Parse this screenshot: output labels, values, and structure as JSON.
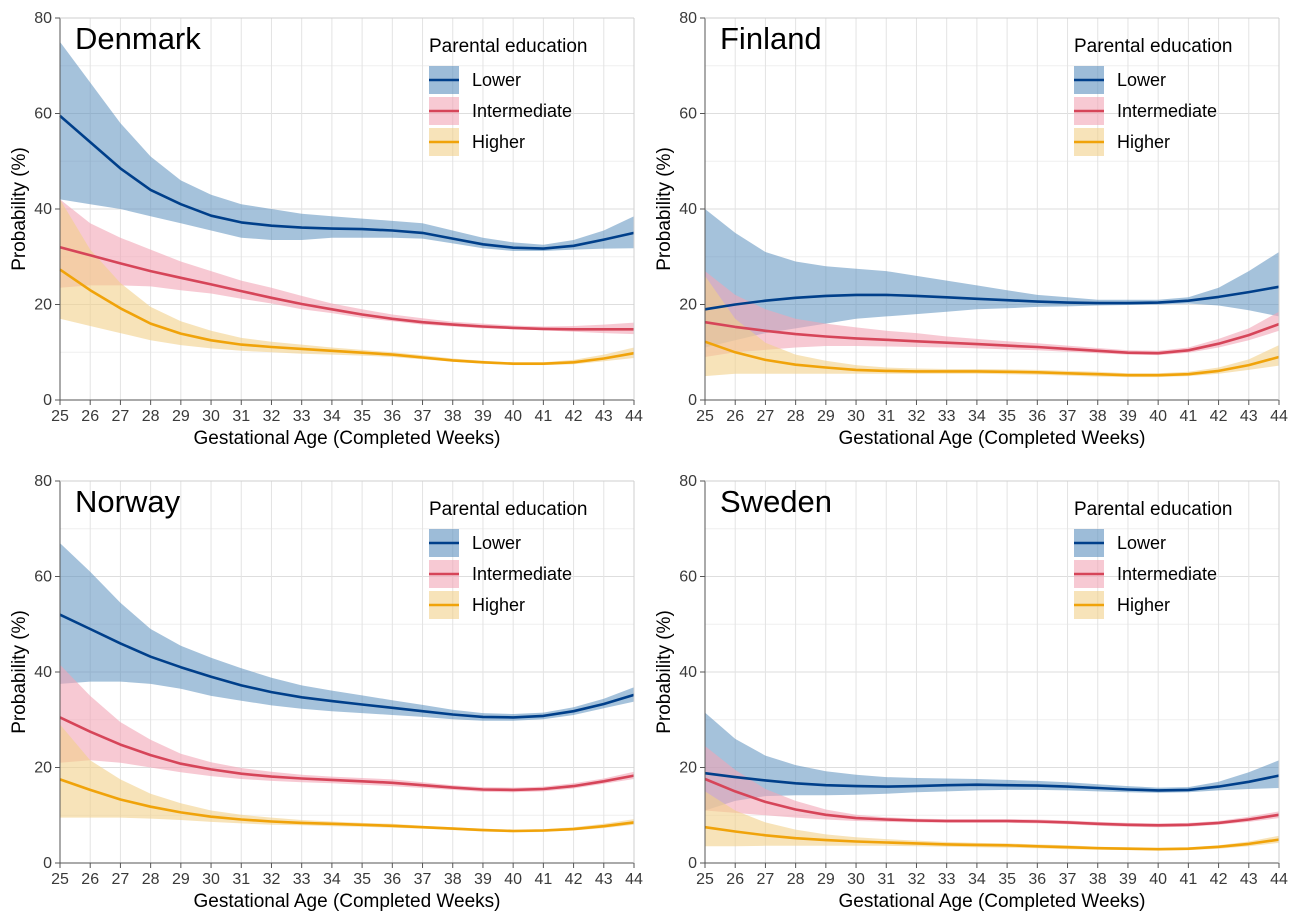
{
  "chart_data": [
    {
      "type": "line",
      "title": "Denmark",
      "xlabel": "Gestational Age (Completed Weeks)",
      "ylabel": "Probability (%)",
      "xlim": [
        25,
        44
      ],
      "ylim": [
        0,
        80
      ],
      "xticks": [
        "25",
        "26",
        "27",
        "28",
        "29",
        "30",
        "31",
        "32",
        "33",
        "34",
        "35",
        "36",
        "37",
        "38",
        "39",
        "40",
        "41",
        "42",
        "43",
        "44"
      ],
      "yticks": [
        "0",
        "20",
        "40",
        "60",
        "80"
      ],
      "grid": true,
      "legend": {
        "title": "Parental education",
        "placement": "top-right"
      },
      "x": [
        25,
        26,
        27,
        28,
        29,
        30,
        31,
        32,
        33,
        34,
        35,
        36,
        37,
        38,
        39,
        40,
        41,
        42,
        43,
        44
      ],
      "series": [
        {
          "name": "Lower",
          "color": "#003f8a",
          "band_color": "#5b8fbe",
          "values": [
            59.5,
            54,
            48.5,
            44,
            41,
            38.6,
            37.2,
            36.5,
            36.1,
            35.9,
            35.8,
            35.5,
            35,
            33.8,
            32.6,
            31.9,
            31.7,
            32.3,
            33.6,
            35
          ],
          "lower": [
            42,
            41,
            40,
            38.5,
            37,
            35.5,
            34,
            33.5,
            33.5,
            34,
            34,
            34,
            33.8,
            32.8,
            31.8,
            31.2,
            31.2,
            31.5,
            31.7,
            31.8
          ],
          "upper": [
            75,
            66.5,
            58,
            51,
            46,
            43,
            41,
            40,
            39,
            38.5,
            38,
            37.5,
            37,
            35.5,
            34,
            33,
            32.5,
            33.5,
            35.5,
            38.5
          ]
        },
        {
          "name": "Intermediate",
          "color": "#d64559",
          "band_color": "#f2a5b5",
          "values": [
            32,
            30.3,
            28.6,
            27,
            25.6,
            24.2,
            22.8,
            21.4,
            20.1,
            19,
            17.9,
            17,
            16.3,
            15.8,
            15.4,
            15.1,
            14.9,
            14.8,
            14.8,
            14.8
          ],
          "lower": [
            23.5,
            24,
            24,
            23.8,
            23,
            22.3,
            21.2,
            20.2,
            19,
            18.2,
            17.2,
            16.5,
            15.8,
            15.4,
            15,
            14.8,
            14.6,
            14.3,
            14,
            13.8
          ],
          "upper": [
            42,
            37,
            34,
            31.5,
            29,
            27,
            25,
            23.5,
            21.8,
            20.2,
            19,
            17.9,
            17.1,
            16.4,
            16,
            15.6,
            15.4,
            15.5,
            15.8,
            16.2
          ]
        },
        {
          "name": "Higher",
          "color": "#f0a30a",
          "band_color": "#f2d08a",
          "values": [
            27.3,
            23,
            19.2,
            16,
            13.9,
            12.5,
            11.6,
            11.1,
            10.7,
            10.3,
            9.9,
            9.5,
            8.9,
            8.3,
            7.9,
            7.6,
            7.6,
            7.9,
            8.7,
            9.8
          ],
          "lower": [
            17,
            15.5,
            14,
            12.5,
            11.5,
            10.8,
            10.3,
            10,
            9.7,
            9.5,
            9.3,
            9,
            8.5,
            8,
            7.6,
            7.3,
            7.3,
            7.5,
            8.1,
            8.8
          ],
          "upper": [
            42,
            31.5,
            24.5,
            19.5,
            16.5,
            14.5,
            13,
            12.2,
            11.6,
            11,
            10.5,
            10,
            9.4,
            8.7,
            8.2,
            7.9,
            7.9,
            8.4,
            9.5,
            11
          ]
        }
      ]
    },
    {
      "type": "line",
      "title": "Finland",
      "xlabel": "Gestational Age (Completed Weeks)",
      "ylabel": "Probability (%)",
      "xlim": [
        25,
        44
      ],
      "ylim": [
        0,
        80
      ],
      "xticks": [
        "25",
        "26",
        "27",
        "28",
        "29",
        "30",
        "31",
        "32",
        "33",
        "34",
        "35",
        "36",
        "37",
        "38",
        "39",
        "40",
        "41",
        "42",
        "43",
        "44"
      ],
      "yticks": [
        "0",
        "20",
        "40",
        "60",
        "80"
      ],
      "grid": true,
      "legend": {
        "title": "Parental education",
        "placement": "top-right"
      },
      "x": [
        25,
        26,
        27,
        28,
        29,
        30,
        31,
        32,
        33,
        34,
        35,
        36,
        37,
        38,
        39,
        40,
        41,
        42,
        43,
        44
      ],
      "series": [
        {
          "name": "Lower",
          "color": "#003f8a",
          "band_color": "#5b8fbe",
          "values": [
            19,
            20,
            20.8,
            21.4,
            21.8,
            22,
            22,
            21.8,
            21.5,
            21.2,
            20.9,
            20.6,
            20.4,
            20.3,
            20.3,
            20.4,
            20.8,
            21.6,
            22.6,
            23.7
          ],
          "lower": [
            11,
            12.5,
            14,
            15,
            16,
            17,
            17.5,
            18,
            18.5,
            19,
            19.2,
            19.5,
            19.6,
            19.8,
            19.9,
            20,
            20.2,
            19.8,
            18.8,
            17.5
          ],
          "upper": [
            40,
            35,
            31,
            29,
            28,
            27.5,
            27,
            26,
            25,
            24,
            23,
            22,
            21.5,
            21,
            21,
            21,
            21.5,
            23.5,
            27,
            31
          ]
        },
        {
          "name": "Intermediate",
          "color": "#d64559",
          "band_color": "#f2a5b5",
          "values": [
            16.3,
            15.3,
            14.5,
            13.8,
            13.3,
            12.9,
            12.6,
            12.3,
            12,
            11.7,
            11.4,
            11.1,
            10.7,
            10.3,
            9.9,
            9.8,
            10.4,
            11.8,
            13.6,
            15.9
          ],
          "lower": [
            9,
            10,
            10.5,
            11,
            11.3,
            11.3,
            11.2,
            11.1,
            11,
            10.8,
            10.6,
            10.4,
            10.1,
            9.8,
            9.5,
            9.4,
            9.9,
            11,
            12.5,
            14.5
          ],
          "upper": [
            27,
            22,
            19,
            17,
            16,
            15.2,
            14.5,
            14,
            13.3,
            12.8,
            12.3,
            11.9,
            11.4,
            10.9,
            10.4,
            10.3,
            11,
            12.8,
            15,
            18.5
          ]
        },
        {
          "name": "Higher",
          "color": "#f0a30a",
          "band_color": "#f2d08a",
          "values": [
            12.2,
            10,
            8.4,
            7.4,
            6.8,
            6.3,
            6.1,
            6,
            6,
            6,
            5.9,
            5.8,
            5.6,
            5.4,
            5.2,
            5.2,
            5.4,
            6.1,
            7.3,
            9
          ],
          "lower": [
            5,
            5.5,
            5.5,
            5.5,
            5.5,
            5.5,
            5.5,
            5.5,
            5.5,
            5.5,
            5.4,
            5.3,
            5.1,
            4.9,
            4.8,
            4.8,
            5,
            5.5,
            6.3,
            7.2
          ],
          "upper": [
            26,
            17,
            12,
            9.5,
            8.2,
            7.3,
            6.8,
            6.6,
            6.5,
            6.5,
            6.4,
            6.3,
            6.1,
            5.9,
            5.6,
            5.6,
            5.9,
            6.8,
            8.5,
            11.5
          ]
        }
      ]
    },
    {
      "type": "line",
      "title": "Norway",
      "xlabel": "Gestational Age (Completed Weeks)",
      "ylabel": "Probability (%)",
      "xlim": [
        25,
        44
      ],
      "ylim": [
        0,
        80
      ],
      "xticks": [
        "25",
        "26",
        "27",
        "28",
        "29",
        "30",
        "31",
        "32",
        "33",
        "34",
        "35",
        "36",
        "37",
        "38",
        "39",
        "40",
        "41",
        "42",
        "43",
        "44"
      ],
      "yticks": [
        "0",
        "20",
        "40",
        "60",
        "80"
      ],
      "grid": true,
      "legend": {
        "title": "Parental education",
        "placement": "top-right"
      },
      "x": [
        25,
        26,
        27,
        28,
        29,
        30,
        31,
        32,
        33,
        34,
        35,
        36,
        37,
        38,
        39,
        40,
        41,
        42,
        43,
        44
      ],
      "series": [
        {
          "name": "Lower",
          "color": "#003f8a",
          "band_color": "#5b8fbe",
          "values": [
            52,
            49,
            46,
            43.2,
            41,
            39,
            37.2,
            35.8,
            34.7,
            33.9,
            33.2,
            32.5,
            31.8,
            31.1,
            30.6,
            30.5,
            30.8,
            31.8,
            33.3,
            35.2
          ],
          "lower": [
            37.5,
            38,
            38,
            37.5,
            36.5,
            35,
            34,
            33,
            32.3,
            31.8,
            31.4,
            31,
            30.6,
            30.1,
            29.8,
            29.8,
            30.1,
            31,
            32.4,
            33.8
          ],
          "upper": [
            67,
            61,
            54.5,
            49,
            45.5,
            43,
            40.8,
            38.8,
            37.2,
            36.1,
            35.1,
            34.1,
            33.1,
            32.1,
            31.4,
            31.2,
            31.5,
            32.6,
            34.4,
            36.8
          ]
        },
        {
          "name": "Intermediate",
          "color": "#d64559",
          "band_color": "#f2a5b5",
          "values": [
            30.5,
            27.5,
            24.8,
            22.6,
            20.8,
            19.6,
            18.7,
            18.1,
            17.7,
            17.4,
            17.1,
            16.8,
            16.3,
            15.8,
            15.4,
            15.3,
            15.5,
            16.1,
            17.1,
            18.3
          ],
          "lower": [
            21,
            21.5,
            21,
            20,
            19,
            18.2,
            17.6,
            17.2,
            16.9,
            16.7,
            16.4,
            16.1,
            15.7,
            15.3,
            14.9,
            14.8,
            15,
            15.6,
            16.6,
            17.6
          ],
          "upper": [
            41.5,
            35,
            29.5,
            25.8,
            22.9,
            21.1,
            19.9,
            19.1,
            18.5,
            18.1,
            17.8,
            17.5,
            16.9,
            16.3,
            15.9,
            15.8,
            16,
            16.7,
            17.7,
            19.1
          ]
        },
        {
          "name": "Higher",
          "color": "#f0a30a",
          "band_color": "#f2d08a",
          "values": [
            17.5,
            15.3,
            13.3,
            11.8,
            10.6,
            9.7,
            9.1,
            8.7,
            8.4,
            8.2,
            8,
            7.8,
            7.5,
            7.2,
            6.9,
            6.7,
            6.8,
            7.1,
            7.7,
            8.5
          ],
          "lower": [
            9.5,
            9.5,
            9.5,
            9.3,
            9,
            8.6,
            8.3,
            8,
            7.9,
            7.7,
            7.6,
            7.4,
            7.2,
            6.9,
            6.6,
            6.4,
            6.5,
            6.8,
            7.3,
            8
          ],
          "upper": [
            29,
            21.5,
            17.5,
            14.5,
            12.5,
            11,
            10.1,
            9.5,
            9,
            8.7,
            8.4,
            8.2,
            7.8,
            7.5,
            7.2,
            7,
            7.1,
            7.5,
            8.2,
            9.2
          ]
        }
      ]
    },
    {
      "type": "line",
      "title": "Sweden",
      "xlabel": "Gestational Age (Completed Weeks)",
      "ylabel": "Probability (%)",
      "xlim": [
        25,
        44
      ],
      "ylim": [
        0,
        80
      ],
      "xticks": [
        "25",
        "26",
        "27",
        "28",
        "29",
        "30",
        "31",
        "32",
        "33",
        "34",
        "35",
        "36",
        "37",
        "38",
        "39",
        "40",
        "41",
        "42",
        "43",
        "44"
      ],
      "yticks": [
        "0",
        "20",
        "40",
        "60",
        "80"
      ],
      "grid": true,
      "legend": {
        "title": "Parental education",
        "placement": "top-right"
      },
      "x": [
        25,
        26,
        27,
        28,
        29,
        30,
        31,
        32,
        33,
        34,
        35,
        36,
        37,
        38,
        39,
        40,
        41,
        42,
        43,
        44
      ],
      "series": [
        {
          "name": "Lower",
          "color": "#003f8a",
          "band_color": "#5b8fbe",
          "values": [
            18.8,
            18,
            17.3,
            16.7,
            16.3,
            16.1,
            16,
            16.1,
            16.3,
            16.4,
            16.3,
            16.2,
            16,
            15.7,
            15.4,
            15.2,
            15.3,
            16,
            17,
            18.3
          ],
          "lower": [
            11,
            13,
            14,
            14.2,
            14.2,
            14.3,
            14.5,
            14.8,
            15,
            15.2,
            15.3,
            15.3,
            15.2,
            15,
            14.8,
            14.7,
            14.8,
            15.2,
            15.5,
            15.7
          ],
          "upper": [
            31.5,
            26,
            22.5,
            20.5,
            19.2,
            18.5,
            18,
            17.8,
            17.7,
            17.6,
            17.4,
            17.2,
            16.9,
            16.5,
            16.1,
            15.8,
            15.9,
            17,
            19,
            21.5
          ]
        },
        {
          "name": "Intermediate",
          "color": "#d64559",
          "band_color": "#f2a5b5",
          "values": [
            17.6,
            15,
            12.8,
            11.2,
            10.1,
            9.4,
            9.1,
            8.9,
            8.8,
            8.8,
            8.8,
            8.7,
            8.5,
            8.2,
            8,
            7.9,
            8,
            8.4,
            9.1,
            10.1
          ],
          "lower": [
            11,
            10.5,
            10,
            9.5,
            9.1,
            8.8,
            8.6,
            8.5,
            8.4,
            8.4,
            8.4,
            8.3,
            8.1,
            7.8,
            7.6,
            7.5,
            7.6,
            8,
            8.6,
            9.4
          ],
          "upper": [
            24.5,
            19.5,
            15.5,
            13,
            11.2,
            10.1,
            9.6,
            9.3,
            9.2,
            9.2,
            9.2,
            9.1,
            8.9,
            8.6,
            8.4,
            8.3,
            8.4,
            8.8,
            9.7,
            10.8
          ]
        },
        {
          "name": "Higher",
          "color": "#f0a30a",
          "band_color": "#f2d08a",
          "values": [
            7.5,
            6.6,
            5.8,
            5.2,
            4.8,
            4.5,
            4.3,
            4.1,
            3.9,
            3.8,
            3.7,
            3.5,
            3.3,
            3.1,
            3,
            2.9,
            3,
            3.4,
            4,
            4.9
          ],
          "lower": [
            3.5,
            3.5,
            3.6,
            3.6,
            3.6,
            3.6,
            3.6,
            3.5,
            3.4,
            3.3,
            3.2,
            3.1,
            2.9,
            2.8,
            2.7,
            2.6,
            2.7,
            3,
            3.5,
            4.2
          ],
          "upper": [
            15,
            11,
            8.5,
            7,
            6,
            5.4,
            5,
            4.7,
            4.4,
            4.2,
            4.1,
            3.9,
            3.7,
            3.4,
            3.3,
            3.2,
            3.3,
            3.7,
            4.5,
            5.7
          ]
        }
      ]
    }
  ]
}
